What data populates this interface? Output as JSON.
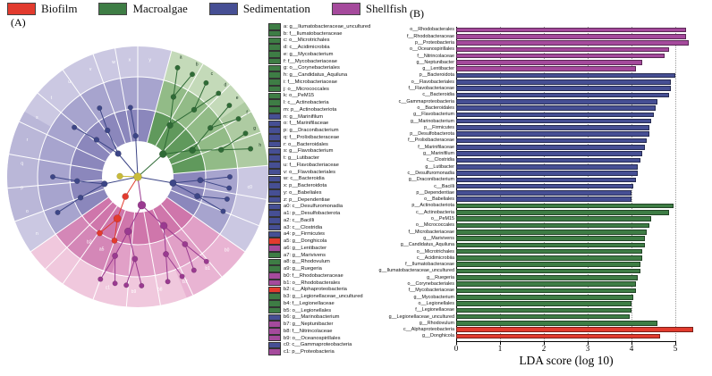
{
  "panel_a_label": "(A)",
  "panel_b_label": "(B)",
  "colors": {
    "biofilm": "#e23b2e",
    "macroalgae": "#3e7d45",
    "sedimentation": "#464f94",
    "shellfish": "#a54a9c"
  },
  "legend": {
    "groups": [
      {
        "label": "Biofilm",
        "group": "biofilm"
      },
      {
        "label": "Macroalgae",
        "group": "macroalgae"
      },
      {
        "label": "Sedimentation",
        "group": "sedimentation"
      },
      {
        "label": "Shellfish",
        "group": "shellfish"
      }
    ]
  },
  "taxa_key": [
    {
      "key": "a",
      "label": "g__Ilumatobacteraceae_uncultured",
      "group": "macroalgae"
    },
    {
      "key": "b",
      "label": "f__Ilumatobacteraceae",
      "group": "macroalgae"
    },
    {
      "key": "c",
      "label": "o__Microtrichales",
      "group": "macroalgae"
    },
    {
      "key": "d",
      "label": "c__Acidimicrobiia",
      "group": "macroalgae"
    },
    {
      "key": "e",
      "label": "g__Mycobacterium",
      "group": "macroalgae"
    },
    {
      "key": "f",
      "label": "f__Mycobacteriaceae",
      "group": "macroalgae"
    },
    {
      "key": "g",
      "label": "o__Corynebacteriales",
      "group": "macroalgae"
    },
    {
      "key": "h",
      "label": "g__Candidatus_Aquiluna",
      "group": "macroalgae"
    },
    {
      "key": "i",
      "label": "f__Microbacteriaceae",
      "group": "macroalgae"
    },
    {
      "key": "j",
      "label": "o__Micrococcales",
      "group": "macroalgae"
    },
    {
      "key": "k",
      "label": "o__PeM15",
      "group": "macroalgae"
    },
    {
      "key": "l",
      "label": "c__Actinobacteria",
      "group": "macroalgae"
    },
    {
      "key": "m",
      "label": "p__Actinobacteriota",
      "group": "macroalgae"
    },
    {
      "key": "n",
      "label": "g__Marinifilum",
      "group": "sedimentation"
    },
    {
      "key": "o",
      "label": "f__Marinifilaceae",
      "group": "sedimentation"
    },
    {
      "key": "p",
      "label": "g__Draconibacterium",
      "group": "sedimentation"
    },
    {
      "key": "q",
      "label": "f__Prolixibacteraceae",
      "group": "sedimentation"
    },
    {
      "key": "r",
      "label": "o__Bacteroidales",
      "group": "sedimentation"
    },
    {
      "key": "s",
      "label": "g__Flavobacterium",
      "group": "sedimentation"
    },
    {
      "key": "t",
      "label": "g__Lutibacter",
      "group": "sedimentation"
    },
    {
      "key": "u",
      "label": "f__Flavobacteriaceae",
      "group": "sedimentation"
    },
    {
      "key": "v",
      "label": "o__Flavobacteriales",
      "group": "sedimentation"
    },
    {
      "key": "w",
      "label": "c__Bacteroidia",
      "group": "sedimentation"
    },
    {
      "key": "x",
      "label": "p__Bacteroidota",
      "group": "sedimentation"
    },
    {
      "key": "y",
      "label": "o__Babeliales",
      "group": "sedimentation"
    },
    {
      "key": "z",
      "label": "p__Dependentiae",
      "group": "sedimentation"
    },
    {
      "key": "a0",
      "label": "c__Desulfuromonadia",
      "group": "sedimentation"
    },
    {
      "key": "a1",
      "label": "p__Desulfobacterota",
      "group": "sedimentation"
    },
    {
      "key": "a2",
      "label": "c__Bacilli",
      "group": "sedimentation"
    },
    {
      "key": "a3",
      "label": "c__Clostridia",
      "group": "sedimentation"
    },
    {
      "key": "a4",
      "label": "p__Firmicutes",
      "group": "sedimentation"
    },
    {
      "key": "a5",
      "label": "g__Donghicola",
      "group": "biofilm"
    },
    {
      "key": "a6",
      "label": "g__Lentibacter",
      "group": "shellfish"
    },
    {
      "key": "a7",
      "label": "g__Marivivens",
      "group": "macroalgae"
    },
    {
      "key": "a8",
      "label": "g__Rhodovulum",
      "group": "macroalgae"
    },
    {
      "key": "a9",
      "label": "g__Ruegeria",
      "group": "macroalgae"
    },
    {
      "key": "b0",
      "label": "f__Rhodobacteraceae",
      "group": "shellfish"
    },
    {
      "key": "b1",
      "label": "o__Rhodobacterales",
      "group": "shellfish"
    },
    {
      "key": "b2",
      "label": "c__Alphaproteobacteria",
      "group": "biofilm"
    },
    {
      "key": "b3",
      "label": "g__Legionellaceae_uncultured",
      "group": "macroalgae"
    },
    {
      "key": "b4",
      "label": "f__Legionellaceae",
      "group": "macroalgae"
    },
    {
      "key": "b5",
      "label": "o__Legionellales",
      "group": "macroalgae"
    },
    {
      "key": "b6",
      "label": "g__Marinobacterium",
      "group": "sedimentation"
    },
    {
      "key": "b7",
      "label": "g__Neptunibacter",
      "group": "shellfish"
    },
    {
      "key": "b8",
      "label": "f__Nitrincolaceae",
      "group": "shellfish"
    },
    {
      "key": "b9",
      "label": "o__Oceanospirillales",
      "group": "shellfish"
    },
    {
      "key": "c0",
      "label": "c__Gammaproteobacteria",
      "group": "sedimentation"
    },
    {
      "key": "c1",
      "label": "p__Proteobacteria",
      "group": "shellfish"
    }
  ],
  "chart_data": {
    "type": "bar",
    "title": "",
    "xlabel": "LDA score (log 10)",
    "ylabel": "",
    "xlim": [
      0,
      5.5
    ],
    "xticks": [
      0,
      1,
      2,
      3,
      4,
      5
    ],
    "grid": "dotted-vertical",
    "legend_position": "top-left-of-figure",
    "bars": [
      {
        "label": "o__Rhodobacterales",
        "group": "shellfish",
        "value": 5.25
      },
      {
        "label": "f__Rhodobacteraceae",
        "group": "shellfish",
        "value": 5.25
      },
      {
        "label": "p__Proteobacteria",
        "group": "shellfish",
        "value": 5.3
      },
      {
        "label": "o__Oceanospirillales",
        "group": "shellfish",
        "value": 4.85
      },
      {
        "label": "f__Nitrincolaceae",
        "group": "shellfish",
        "value": 4.75
      },
      {
        "label": "g__Neptunibacter",
        "group": "shellfish",
        "value": 4.25
      },
      {
        "label": "g__Lentibacter",
        "group": "shellfish",
        "value": 4.1
      },
      {
        "label": "p__Bacteroidota",
        "group": "sedimentation",
        "value": 5.0
      },
      {
        "label": "o__Flavobacteriales",
        "group": "sedimentation",
        "value": 4.9
      },
      {
        "label": "f__Flavobacteriaceae",
        "group": "sedimentation",
        "value": 4.9
      },
      {
        "label": "c__Bacteroidia",
        "group": "sedimentation",
        "value": 4.85
      },
      {
        "label": "c__Gammaproteobacteria",
        "group": "sedimentation",
        "value": 4.6
      },
      {
        "label": "o__Bacteroidales",
        "group": "sedimentation",
        "value": 4.55
      },
      {
        "label": "g__Flavobacterium",
        "group": "sedimentation",
        "value": 4.5
      },
      {
        "label": "g__Marinobacterium",
        "group": "sedimentation",
        "value": 4.45
      },
      {
        "label": "p__Firmicutes",
        "group": "sedimentation",
        "value": 4.4
      },
      {
        "label": "p__Desulfobacterota",
        "group": "sedimentation",
        "value": 4.4
      },
      {
        "label": "f__Prolixibacteraceae",
        "group": "sedimentation",
        "value": 4.35
      },
      {
        "label": "f__Marinifilaceae",
        "group": "sedimentation",
        "value": 4.3
      },
      {
        "label": "g__Marinifilum",
        "group": "sedimentation",
        "value": 4.25
      },
      {
        "label": "c__Clostridia",
        "group": "sedimentation",
        "value": 4.2
      },
      {
        "label": "g__Lutibacter",
        "group": "sedimentation",
        "value": 4.15
      },
      {
        "label": "c__Desulfuromonadia",
        "group": "sedimentation",
        "value": 4.15
      },
      {
        "label": "g__Draconibacterium",
        "group": "sedimentation",
        "value": 4.1
      },
      {
        "label": "c__Bacilli",
        "group": "sedimentation",
        "value": 4.05
      },
      {
        "label": "p__Dependentiae",
        "group": "sedimentation",
        "value": 4.0
      },
      {
        "label": "o__Babeliales",
        "group": "sedimentation",
        "value": 4.0
      },
      {
        "label": "p__Actinobacteriota",
        "group": "macroalgae",
        "value": 4.95
      },
      {
        "label": "c__Actinobacteria",
        "group": "macroalgae",
        "value": 4.85
      },
      {
        "label": "o__PeM15",
        "group": "macroalgae",
        "value": 4.45
      },
      {
        "label": "o__Micrococcales",
        "group": "macroalgae",
        "value": 4.4
      },
      {
        "label": "f__Microbacteriaceae",
        "group": "macroalgae",
        "value": 4.35
      },
      {
        "label": "g__Marivivens",
        "group": "macroalgae",
        "value": 4.3
      },
      {
        "label": "g__Candidatus_Aquiluna",
        "group": "macroalgae",
        "value": 4.3
      },
      {
        "label": "o__Microtrichales",
        "group": "macroalgae",
        "value": 4.25
      },
      {
        "label": "c__Acidimicrobiia",
        "group": "macroalgae",
        "value": 4.25
      },
      {
        "label": "f__Ilumatobacteraceae",
        "group": "macroalgae",
        "value": 4.2
      },
      {
        "label": "g__Ilumatobacteraceae_uncultured",
        "group": "macroalgae",
        "value": 4.2
      },
      {
        "label": "g__Ruegeria",
        "group": "macroalgae",
        "value": 4.15
      },
      {
        "label": "o__Corynebacteriales",
        "group": "macroalgae",
        "value": 4.1
      },
      {
        "label": "f__Mycobacteriaceae",
        "group": "macroalgae",
        "value": 4.1
      },
      {
        "label": "g__Mycobacterium",
        "group": "macroalgae",
        "value": 4.05
      },
      {
        "label": "o__Legionellales",
        "group": "macroalgae",
        "value": 4.0
      },
      {
        "label": "f__Legionellaceae",
        "group": "macroalgae",
        "value": 4.0
      },
      {
        "label": "g__Legionellaceae_uncultured",
        "group": "macroalgae",
        "value": 3.95
      },
      {
        "label": "g__Rhodovulum",
        "group": "macroalgae",
        "value": 4.6
      },
      {
        "label": "c__Alphaproteobacteria",
        "group": "biofilm",
        "value": 5.4
      },
      {
        "label": "g__Donghicola",
        "group": "biofilm",
        "value": 4.65
      }
    ]
  }
}
